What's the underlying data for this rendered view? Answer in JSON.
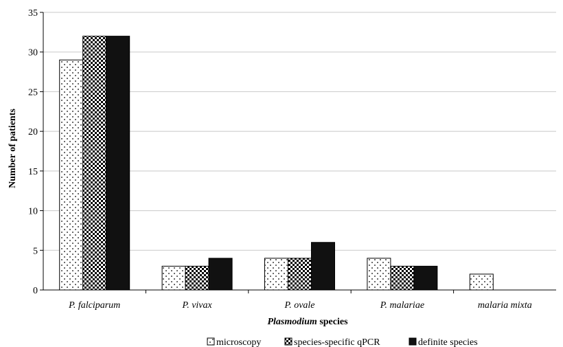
{
  "chart_data": {
    "type": "bar",
    "categories": [
      "P. falciparum",
      "P. vivax",
      "P. ovale",
      "P. malariae",
      "malaria mixta"
    ],
    "series": [
      {
        "name": "microscopy",
        "values": [
          29,
          3,
          4,
          4,
          2
        ],
        "pattern": "dots"
      },
      {
        "name": "species-specific qPCR",
        "values": [
          32,
          3,
          4,
          3,
          0
        ],
        "pattern": "checker"
      },
      {
        "name": "definite species",
        "values": [
          32,
          4,
          6,
          3,
          0
        ],
        "pattern": "solid"
      }
    ],
    "xlabel_italic": "Plasmodium",
    "xlabel_rest": " species",
    "ylabel": "Number of patients",
    "ylim": [
      0,
      35
    ],
    "yticks": [
      0,
      5,
      10,
      15,
      20,
      25,
      30,
      35
    ],
    "grid": true,
    "legend_position": "bottom",
    "colors": {
      "bar_fill": "#ffffff",
      "solid": "#111111",
      "stroke": "#000000",
      "grid": "#c8c8c8"
    }
  }
}
